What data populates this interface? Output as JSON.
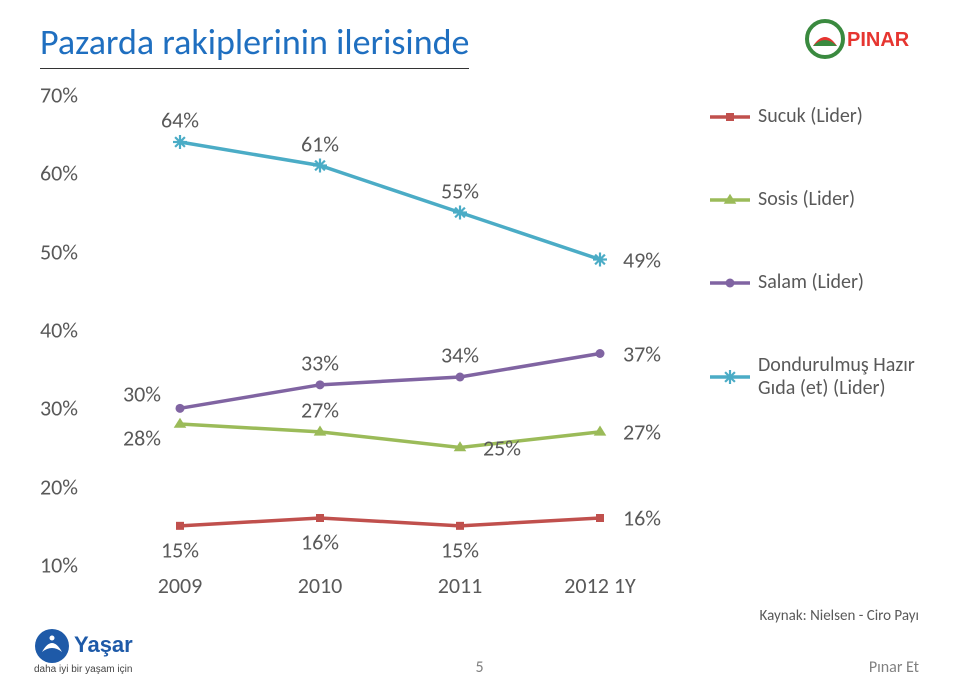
{
  "title": "Pazarda rakiplerinin ilerisinde",
  "chart": {
    "type": "line",
    "categories": [
      "2009",
      "2010",
      "2011",
      "2012 1Y"
    ],
    "y_ticks": [
      10,
      20,
      30,
      40,
      50,
      60,
      70
    ],
    "y_tick_labels": [
      "10%",
      "20%",
      "30%",
      "40%",
      "50%",
      "60%",
      "70%"
    ],
    "ylim": [
      10,
      70
    ],
    "series": [
      {
        "name": "Sucuk (Lider)",
        "color": "#c0504d",
        "marker": "square",
        "marker_size": 8,
        "line_width": 3.5,
        "values": [
          15,
          16,
          15,
          16
        ],
        "labels": [
          "15%",
          "16%",
          "15%",
          "16%"
        ],
        "label_pos": [
          "below",
          "below",
          "below",
          "right"
        ]
      },
      {
        "name": "Sosis (Lider)",
        "color": "#9bbb59",
        "marker": "triangle",
        "marker_size": 9,
        "line_width": 3.5,
        "values": [
          28,
          27,
          25,
          27
        ],
        "labels": [
          "28%",
          "27%",
          "25%",
          "27%"
        ],
        "label_pos": [
          "left-below",
          "above",
          "right",
          "right"
        ]
      },
      {
        "name": "Salam (Lider)",
        "color": "#8064a2",
        "marker": "circle",
        "marker_size": 9,
        "line_width": 3.5,
        "values": [
          30,
          33,
          34,
          37
        ],
        "labels": [
          "30%",
          "33%",
          "34%",
          "37%"
        ],
        "label_pos": [
          "left-above",
          "above",
          "above",
          "right"
        ]
      },
      {
        "name": "Dondurulmuş Hazır Gıda (et) (Lider)",
        "color": "#4bacc6",
        "marker": "star",
        "marker_size": 10,
        "line_width": 3.5,
        "values": [
          64,
          61,
          55,
          49
        ],
        "labels": [
          "64%",
          "61%",
          "55%",
          "49%"
        ],
        "label_pos": [
          "above",
          "above",
          "above",
          "right"
        ]
      }
    ],
    "legend_order": [
      0,
      1,
      2,
      3
    ],
    "background_color": "#ffffff",
    "text_color": "#595959",
    "axis_fontsize": 22,
    "label_fontsize": 22
  },
  "source": "Kaynak: Nielsen - Ciro Payı",
  "page_number": "5",
  "footer_right": "Pınar Et",
  "yasar_tagline": "daha iyi bir yaşam için",
  "brand": "PINAR"
}
